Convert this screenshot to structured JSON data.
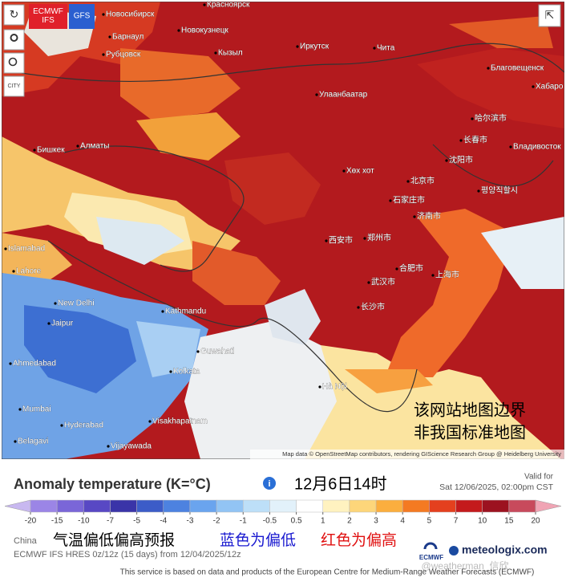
{
  "map": {
    "model_buttons": [
      "ECMWF IFS",
      "GFS"
    ],
    "side_button": "CITY",
    "city_labels": [
      "Красноярск",
      "Новосибирск",
      "Барнаул",
      "Новокузнецк",
      "Рубцовск",
      "Кызыл",
      "Иркутск",
      "Чита",
      "Улаанбаатар",
      "Благовещенск",
      "Хабаро",
      "Бишкек",
      "Алматы",
      "哈尔滨市",
      "长春市",
      "Владивосток",
      "沈阳市",
      "Хөх хот",
      "北京市",
      "평양직할시",
      "石家庄市",
      "济南市",
      "西安市",
      "郑州市",
      "合肥市",
      "上海市",
      "武汉市",
      "长沙市",
      "Islamabad",
      "Lahore",
      "New Delhi",
      "Kathmandu",
      "Jaipur",
      "Guwahati",
      "Ahmedabad",
      "Kolkata",
      "Hà Nội",
      "Mumbai",
      "Hyderabad",
      "Visakhapatnam",
      "Belagavi",
      "Vijayawada"
    ],
    "attribution": "Map data © OpenStreetMap contributors, rendering GIScience Research Group @ Heidelberg University",
    "watermark": [
      "该网站地图边界",
      "非我国标准地图"
    ]
  },
  "header": {
    "title": "Anomaly temperature (K=°C)",
    "time_cn": "12月6日14时",
    "valid_label": "Valid for",
    "valid_time": "Sat 12/06/2025, 02:00pm CST"
  },
  "colorbar": {
    "ticks": [
      -20,
      -15,
      -10,
      -7,
      -5,
      -4,
      -3,
      -2,
      -1,
      -0.5,
      0.5,
      1,
      2,
      3,
      4,
      5,
      7,
      10,
      15,
      20
    ],
    "colors": [
      "#c8b8f0",
      "#9b85e6",
      "#7a66d8",
      "#5848c4",
      "#3a34a8",
      "#3c5cc8",
      "#4d82e0",
      "#6aa4ee",
      "#92c4f4",
      "#bddff8",
      "#e2f1fa",
      "#ffffff",
      "#fff2c0",
      "#fdd67a",
      "#fbae3e",
      "#f47a22",
      "#e4401e",
      "#c41a1c",
      "#9c1220",
      "#c84a5c",
      "#f0a4b4"
    ]
  },
  "footer": {
    "region": "China",
    "note_cn": "气温偏低偏高预报",
    "blue_note": "蓝色为偏低",
    "red_note": "红色为偏高",
    "model_info": "ECMWF IFS HRES 0z/12z (15 days) from 12/04/2025/12z",
    "ecmwf": "ECMWF",
    "brand": "meteologix.com",
    "weibo": "@weatherman_信欣",
    "disclaimer": "This service is based on data and products of the European Centre for Medium-Range Weather Forecasts (ECMWF)"
  }
}
